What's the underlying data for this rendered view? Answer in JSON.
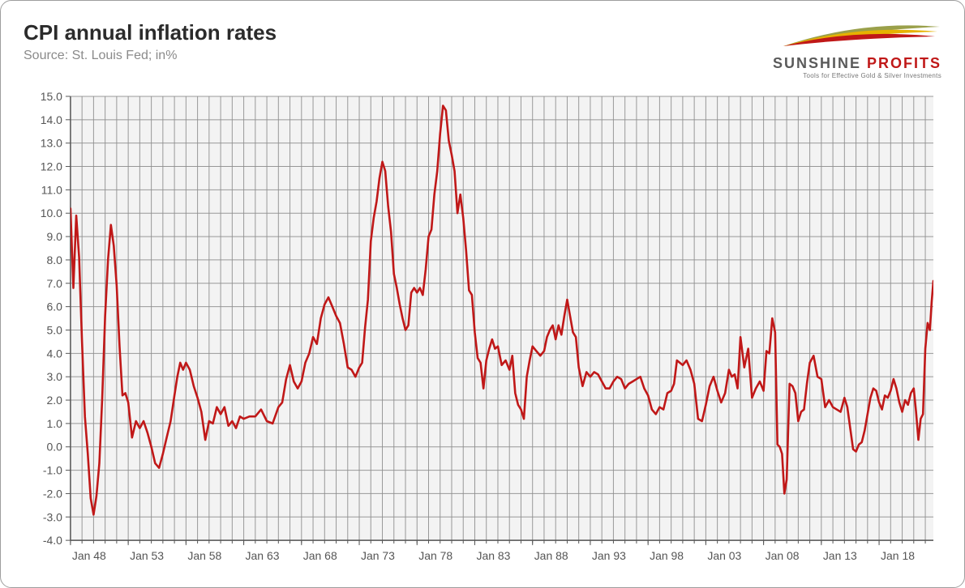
{
  "title": "CPI annual inflation rates",
  "subtitle": "Source: St. Louis Fed; in%",
  "logo": {
    "line1a": "SUNSHINE ",
    "line1b": "PROFITS",
    "tagline": "Tools for Effective Gold & Silver Investments",
    "swoosh_colors": [
      "#c01818",
      "#e6b200",
      "#9aa04a"
    ]
  },
  "chart": {
    "type": "line",
    "background_color": "#ffffff",
    "plot_background": "#f3f3f3",
    "grid_color": "#8f8f8f",
    "axis_color": "#555555",
    "line_color": "#c01818",
    "line_width": 2.6,
    "ylim": [
      -4.0,
      15.0
    ],
    "ytick_step": 1.0,
    "yticks": [
      -4.0,
      -3.0,
      -2.0,
      -1.0,
      0.0,
      1.0,
      2.0,
      3.0,
      4.0,
      5.0,
      6.0,
      7.0,
      8.0,
      9.0,
      10.0,
      11.0,
      12.0,
      13.0,
      14.0,
      15.0
    ],
    "x_start_year": 1948,
    "x_end_year": 2022,
    "x_major_tick_years": [
      1948,
      1953,
      1958,
      1963,
      1968,
      1973,
      1978,
      1983,
      1988,
      1993,
      1998,
      2003,
      2008,
      2013,
      2018
    ],
    "x_minor_tick_every_years": 1,
    "x_tick_labels": [
      "Jan 48",
      "Jan 53",
      "Jan 58",
      "Jan 63",
      "Jan 68",
      "Jan 73",
      "Jan 78",
      "Jan 83",
      "Jan 88",
      "Jan 93",
      "Jan 98",
      "Jan 03",
      "Jan 08",
      "Jan 13",
      "Jan 18"
    ],
    "tick_label_fontsize": 14,
    "tick_label_color": "#555555",
    "series": [
      {
        "year": 1948.0,
        "v": 10.2
      },
      {
        "year": 1948.25,
        "v": 6.8
      },
      {
        "year": 1948.5,
        "v": 9.9
      },
      {
        "year": 1948.75,
        "v": 8.1
      },
      {
        "year": 1949.0,
        "v": 4.5
      },
      {
        "year": 1949.25,
        "v": 1.3
      },
      {
        "year": 1949.5,
        "v": -0.3
      },
      {
        "year": 1949.75,
        "v": -2.2
      },
      {
        "year": 1950.0,
        "v": -2.9
      },
      {
        "year": 1950.25,
        "v": -2.1
      },
      {
        "year": 1950.5,
        "v": -0.7
      },
      {
        "year": 1950.75,
        "v": 2.1
      },
      {
        "year": 1951.0,
        "v": 5.6
      },
      {
        "year": 1951.25,
        "v": 8.0
      },
      {
        "year": 1951.5,
        "v": 9.5
      },
      {
        "year": 1951.75,
        "v": 8.6
      },
      {
        "year": 1952.0,
        "v": 6.9
      },
      {
        "year": 1952.25,
        "v": 4.3
      },
      {
        "year": 1952.5,
        "v": 2.2
      },
      {
        "year": 1952.75,
        "v": 2.3
      },
      {
        "year": 1953.0,
        "v": 1.9
      },
      {
        "year": 1953.33,
        "v": 0.4
      },
      {
        "year": 1953.67,
        "v": 1.1
      },
      {
        "year": 1954.0,
        "v": 0.8
      },
      {
        "year": 1954.33,
        "v": 1.1
      },
      {
        "year": 1954.67,
        "v": 0.6
      },
      {
        "year": 1955.0,
        "v": 0.0
      },
      {
        "year": 1955.33,
        "v": -0.7
      },
      {
        "year": 1955.67,
        "v": -0.9
      },
      {
        "year": 1956.0,
        "v": -0.3
      },
      {
        "year": 1956.33,
        "v": 0.4
      },
      {
        "year": 1956.67,
        "v": 1.1
      },
      {
        "year": 1957.0,
        "v": 2.2
      },
      {
        "year": 1957.25,
        "v": 3.0
      },
      {
        "year": 1957.5,
        "v": 3.6
      },
      {
        "year": 1957.75,
        "v": 3.3
      },
      {
        "year": 1958.0,
        "v": 3.6
      },
      {
        "year": 1958.33,
        "v": 3.3
      },
      {
        "year": 1958.67,
        "v": 2.6
      },
      {
        "year": 1959.0,
        "v": 2.1
      },
      {
        "year": 1959.33,
        "v": 1.5
      },
      {
        "year": 1959.67,
        "v": 0.3
      },
      {
        "year": 1960.0,
        "v": 1.1
      },
      {
        "year": 1960.33,
        "v": 1.0
      },
      {
        "year": 1960.67,
        "v": 1.7
      },
      {
        "year": 1961.0,
        "v": 1.4
      },
      {
        "year": 1961.33,
        "v": 1.7
      },
      {
        "year": 1961.67,
        "v": 0.9
      },
      {
        "year": 1962.0,
        "v": 1.1
      },
      {
        "year": 1962.33,
        "v": 0.8
      },
      {
        "year": 1962.67,
        "v": 1.3
      },
      {
        "year": 1963.0,
        "v": 1.2
      },
      {
        "year": 1963.5,
        "v": 1.3
      },
      {
        "year": 1964.0,
        "v": 1.3
      },
      {
        "year": 1964.5,
        "v": 1.6
      },
      {
        "year": 1965.0,
        "v": 1.1
      },
      {
        "year": 1965.5,
        "v": 1.0
      },
      {
        "year": 1966.0,
        "v": 1.7
      },
      {
        "year": 1966.33,
        "v": 1.9
      },
      {
        "year": 1966.67,
        "v": 2.9
      },
      {
        "year": 1967.0,
        "v": 3.5
      },
      {
        "year": 1967.33,
        "v": 2.8
      },
      {
        "year": 1967.67,
        "v": 2.5
      },
      {
        "year": 1968.0,
        "v": 2.8
      },
      {
        "year": 1968.33,
        "v": 3.6
      },
      {
        "year": 1968.67,
        "v": 4.0
      },
      {
        "year": 1969.0,
        "v": 4.7
      },
      {
        "year": 1969.33,
        "v": 4.4
      },
      {
        "year": 1969.67,
        "v": 5.5
      },
      {
        "year": 1970.0,
        "v": 6.1
      },
      {
        "year": 1970.33,
        "v": 6.4
      },
      {
        "year": 1970.67,
        "v": 6.0
      },
      {
        "year": 1971.0,
        "v": 5.6
      },
      {
        "year": 1971.33,
        "v": 5.3
      },
      {
        "year": 1971.67,
        "v": 4.4
      },
      {
        "year": 1972.0,
        "v": 3.4
      },
      {
        "year": 1972.33,
        "v": 3.3
      },
      {
        "year": 1972.67,
        "v": 3.0
      },
      {
        "year": 1973.0,
        "v": 3.4
      },
      {
        "year": 1973.25,
        "v": 3.6
      },
      {
        "year": 1973.5,
        "v": 5.1
      },
      {
        "year": 1973.75,
        "v": 6.3
      },
      {
        "year": 1974.0,
        "v": 8.8
      },
      {
        "year": 1974.25,
        "v": 9.8
      },
      {
        "year": 1974.5,
        "v": 10.5
      },
      {
        "year": 1974.75,
        "v": 11.5
      },
      {
        "year": 1975.0,
        "v": 12.2
      },
      {
        "year": 1975.25,
        "v": 11.8
      },
      {
        "year": 1975.5,
        "v": 10.3
      },
      {
        "year": 1975.75,
        "v": 9.2
      },
      {
        "year": 1976.0,
        "v": 7.4
      },
      {
        "year": 1976.25,
        "v": 6.8
      },
      {
        "year": 1976.5,
        "v": 6.1
      },
      {
        "year": 1976.75,
        "v": 5.5
      },
      {
        "year": 1977.0,
        "v": 5.0
      },
      {
        "year": 1977.25,
        "v": 5.2
      },
      {
        "year": 1977.5,
        "v": 6.6
      },
      {
        "year": 1977.75,
        "v": 6.8
      },
      {
        "year": 1978.0,
        "v": 6.6
      },
      {
        "year": 1978.25,
        "v": 6.8
      },
      {
        "year": 1978.5,
        "v": 6.5
      },
      {
        "year": 1978.75,
        "v": 7.6
      },
      {
        "year": 1979.0,
        "v": 9.0
      },
      {
        "year": 1979.25,
        "v": 9.3
      },
      {
        "year": 1979.5,
        "v": 10.8
      },
      {
        "year": 1979.75,
        "v": 11.8
      },
      {
        "year": 1980.0,
        "v": 13.4
      },
      {
        "year": 1980.25,
        "v": 14.6
      },
      {
        "year": 1980.5,
        "v": 14.4
      },
      {
        "year": 1980.75,
        "v": 13.1
      },
      {
        "year": 1981.0,
        "v": 12.5
      },
      {
        "year": 1981.25,
        "v": 11.8
      },
      {
        "year": 1981.5,
        "v": 10.0
      },
      {
        "year": 1981.75,
        "v": 10.8
      },
      {
        "year": 1982.0,
        "v": 9.8
      },
      {
        "year": 1982.25,
        "v": 8.4
      },
      {
        "year": 1982.5,
        "v": 6.7
      },
      {
        "year": 1982.75,
        "v": 6.5
      },
      {
        "year": 1983.0,
        "v": 4.9
      },
      {
        "year": 1983.25,
        "v": 3.8
      },
      {
        "year": 1983.5,
        "v": 3.6
      },
      {
        "year": 1983.75,
        "v": 2.5
      },
      {
        "year": 1984.0,
        "v": 3.7
      },
      {
        "year": 1984.25,
        "v": 4.2
      },
      {
        "year": 1984.5,
        "v": 4.6
      },
      {
        "year": 1984.75,
        "v": 4.2
      },
      {
        "year": 1985.0,
        "v": 4.3
      },
      {
        "year": 1985.33,
        "v": 3.5
      },
      {
        "year": 1985.67,
        "v": 3.7
      },
      {
        "year": 1986.0,
        "v": 3.3
      },
      {
        "year": 1986.25,
        "v": 3.9
      },
      {
        "year": 1986.5,
        "v": 2.3
      },
      {
        "year": 1986.75,
        "v": 1.8
      },
      {
        "year": 1987.0,
        "v": 1.6
      },
      {
        "year": 1987.25,
        "v": 1.2
      },
      {
        "year": 1987.5,
        "v": 3.0
      },
      {
        "year": 1987.75,
        "v": 3.7
      },
      {
        "year": 1988.0,
        "v": 4.3
      },
      {
        "year": 1988.33,
        "v": 4.1
      },
      {
        "year": 1988.67,
        "v": 3.9
      },
      {
        "year": 1989.0,
        "v": 4.1
      },
      {
        "year": 1989.25,
        "v": 4.7
      },
      {
        "year": 1989.5,
        "v": 5.0
      },
      {
        "year": 1989.75,
        "v": 5.2
      },
      {
        "year": 1990.0,
        "v": 4.6
      },
      {
        "year": 1990.25,
        "v": 5.2
      },
      {
        "year": 1990.5,
        "v": 4.8
      },
      {
        "year": 1990.75,
        "v": 5.6
      },
      {
        "year": 1991.0,
        "v": 6.3
      },
      {
        "year": 1991.25,
        "v": 5.6
      },
      {
        "year": 1991.5,
        "v": 4.9
      },
      {
        "year": 1991.75,
        "v": 4.7
      },
      {
        "year": 1992.0,
        "v": 3.4
      },
      {
        "year": 1992.33,
        "v": 2.6
      },
      {
        "year": 1992.67,
        "v": 3.2
      },
      {
        "year": 1993.0,
        "v": 3.0
      },
      {
        "year": 1993.33,
        "v": 3.2
      },
      {
        "year": 1993.67,
        "v": 3.1
      },
      {
        "year": 1994.0,
        "v": 2.8
      },
      {
        "year": 1994.33,
        "v": 2.5
      },
      {
        "year": 1994.67,
        "v": 2.5
      },
      {
        "year": 1995.0,
        "v": 2.8
      },
      {
        "year": 1995.33,
        "v": 3.0
      },
      {
        "year": 1995.67,
        "v": 2.9
      },
      {
        "year": 1996.0,
        "v": 2.5
      },
      {
        "year": 1996.33,
        "v": 2.7
      },
      {
        "year": 1996.67,
        "v": 2.8
      },
      {
        "year": 1997.0,
        "v": 2.9
      },
      {
        "year": 1997.33,
        "v": 3.0
      },
      {
        "year": 1997.67,
        "v": 2.5
      },
      {
        "year": 1998.0,
        "v": 2.2
      },
      {
        "year": 1998.33,
        "v": 1.6
      },
      {
        "year": 1998.67,
        "v": 1.4
      },
      {
        "year": 1999.0,
        "v": 1.7
      },
      {
        "year": 1999.33,
        "v": 1.6
      },
      {
        "year": 1999.67,
        "v": 2.3
      },
      {
        "year": 2000.0,
        "v": 2.4
      },
      {
        "year": 2000.25,
        "v": 2.7
      },
      {
        "year": 2000.5,
        "v": 3.7
      },
      {
        "year": 2000.75,
        "v": 3.6
      },
      {
        "year": 2001.0,
        "v": 3.5
      },
      {
        "year": 2001.33,
        "v": 3.7
      },
      {
        "year": 2001.67,
        "v": 3.3
      },
      {
        "year": 2002.0,
        "v": 2.7
      },
      {
        "year": 2002.33,
        "v": 1.2
      },
      {
        "year": 2002.67,
        "v": 1.1
      },
      {
        "year": 2003.0,
        "v": 1.8
      },
      {
        "year": 2003.33,
        "v": 2.6
      },
      {
        "year": 2003.67,
        "v": 3.0
      },
      {
        "year": 2004.0,
        "v": 2.4
      },
      {
        "year": 2004.33,
        "v": 1.9
      },
      {
        "year": 2004.67,
        "v": 2.3
      },
      {
        "year": 2005.0,
        "v": 3.3
      },
      {
        "year": 2005.25,
        "v": 3.0
      },
      {
        "year": 2005.5,
        "v": 3.1
      },
      {
        "year": 2005.75,
        "v": 2.5
      },
      {
        "year": 2006.0,
        "v": 4.7
      },
      {
        "year": 2006.33,
        "v": 3.4
      },
      {
        "year": 2006.67,
        "v": 4.2
      },
      {
        "year": 2007.0,
        "v": 2.1
      },
      {
        "year": 2007.33,
        "v": 2.5
      },
      {
        "year": 2007.67,
        "v": 2.8
      },
      {
        "year": 2008.0,
        "v": 2.4
      },
      {
        "year": 2008.25,
        "v": 4.1
      },
      {
        "year": 2008.5,
        "v": 4.0
      },
      {
        "year": 2008.75,
        "v": 5.5
      },
      {
        "year": 2009.0,
        "v": 4.9
      },
      {
        "year": 2009.2,
        "v": 0.1
      },
      {
        "year": 2009.4,
        "v": 0.0
      },
      {
        "year": 2009.6,
        "v": -0.3
      },
      {
        "year": 2009.8,
        "v": -2.0
      },
      {
        "year": 2010.0,
        "v": -1.4
      },
      {
        "year": 2010.25,
        "v": 2.7
      },
      {
        "year": 2010.5,
        "v": 2.6
      },
      {
        "year": 2010.75,
        "v": 2.3
      },
      {
        "year": 2011.0,
        "v": 1.1
      },
      {
        "year": 2011.25,
        "v": 1.5
      },
      {
        "year": 2011.5,
        "v": 1.6
      },
      {
        "year": 2011.75,
        "v": 2.7
      },
      {
        "year": 2012.0,
        "v": 3.6
      },
      {
        "year": 2012.33,
        "v": 3.9
      },
      {
        "year": 2012.67,
        "v": 3.0
      },
      {
        "year": 2013.0,
        "v": 2.9
      },
      {
        "year": 2013.33,
        "v": 1.7
      },
      {
        "year": 2013.67,
        "v": 2.0
      },
      {
        "year": 2014.0,
        "v": 1.7
      },
      {
        "year": 2014.33,
        "v": 1.6
      },
      {
        "year": 2014.67,
        "v": 1.5
      },
      {
        "year": 2015.0,
        "v": 2.1
      },
      {
        "year": 2015.25,
        "v": 1.7
      },
      {
        "year": 2015.5,
        "v": 0.8
      },
      {
        "year": 2015.75,
        "v": -0.1
      },
      {
        "year": 2016.0,
        "v": -0.2
      },
      {
        "year": 2016.25,
        "v": 0.1
      },
      {
        "year": 2016.5,
        "v": 0.2
      },
      {
        "year": 2016.75,
        "v": 0.7
      },
      {
        "year": 2017.0,
        "v": 1.4
      },
      {
        "year": 2017.25,
        "v": 2.1
      },
      {
        "year": 2017.5,
        "v": 2.5
      },
      {
        "year": 2017.75,
        "v": 2.4
      },
      {
        "year": 2018.0,
        "v": 1.9
      },
      {
        "year": 2018.25,
        "v": 1.6
      },
      {
        "year": 2018.5,
        "v": 2.2
      },
      {
        "year": 2018.75,
        "v": 2.1
      },
      {
        "year": 2019.0,
        "v": 2.4
      },
      {
        "year": 2019.25,
        "v": 2.9
      },
      {
        "year": 2019.5,
        "v": 2.5
      },
      {
        "year": 2019.75,
        "v": 1.9
      },
      {
        "year": 2020.0,
        "v": 1.5
      },
      {
        "year": 2020.25,
        "v": 2.0
      },
      {
        "year": 2020.5,
        "v": 1.8
      },
      {
        "year": 2020.75,
        "v": 2.3
      },
      {
        "year": 2021.0,
        "v": 2.5
      },
      {
        "year": 2021.2,
        "v": 1.5
      },
      {
        "year": 2021.4,
        "v": 0.3
      },
      {
        "year": 2021.6,
        "v": 1.2
      },
      {
        "year": 2021.8,
        "v": 1.4
      },
      {
        "year": 2022.0,
        "v": 4.2
      },
      {
        "year": 2022.2,
        "v": 5.3
      },
      {
        "year": 2022.4,
        "v": 5.0
      },
      {
        "year": 2022.55,
        "v": 6.2
      },
      {
        "year": 2022.7,
        "v": 7.1
      }
    ]
  }
}
